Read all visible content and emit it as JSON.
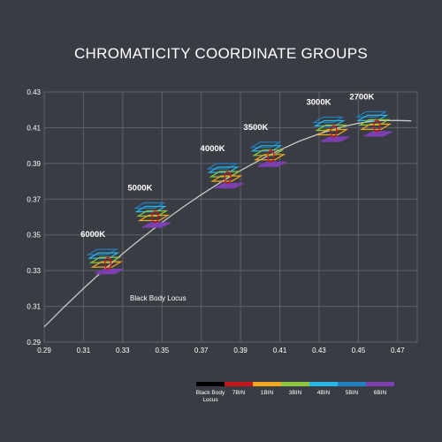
{
  "chart_data": {
    "type": "scatter",
    "title": "CHROMATICITY COORDINATE GROUPS",
    "xlabel": "",
    "ylabel": "",
    "xlim": [
      0.29,
      0.48
    ],
    "ylim": [
      0.29,
      0.43
    ],
    "xticks": [
      "0.29",
      "0.31",
      "0.33",
      "0.35",
      "0.37",
      "0.39",
      "0.41",
      "0.43",
      "0.45",
      "0.47"
    ],
    "yticks": [
      "0.29",
      "0.31",
      "0.33",
      "0.35",
      "0.37",
      "0.39",
      "0.41",
      "0.43"
    ],
    "grid": true,
    "locus_label": "Black Body Locus",
    "locus": [
      {
        "x": 0.29,
        "y": 0.2985
      },
      {
        "x": 0.3,
        "y": 0.3095
      },
      {
        "x": 0.31,
        "y": 0.32
      },
      {
        "x": 0.32,
        "y": 0.33
      },
      {
        "x": 0.33,
        "y": 0.3395
      },
      {
        "x": 0.34,
        "y": 0.3485
      },
      {
        "x": 0.35,
        "y": 0.357
      },
      {
        "x": 0.36,
        "y": 0.365
      },
      {
        "x": 0.37,
        "y": 0.3725
      },
      {
        "x": 0.38,
        "y": 0.3795
      },
      {
        "x": 0.39,
        "y": 0.386
      },
      {
        "x": 0.4,
        "y": 0.392
      },
      {
        "x": 0.41,
        "y": 0.3975
      },
      {
        "x": 0.42,
        "y": 0.4025
      },
      {
        "x": 0.43,
        "y": 0.4065
      },
      {
        "x": 0.44,
        "y": 0.41
      },
      {
        "x": 0.45,
        "y": 0.4125
      },
      {
        "x": 0.46,
        "y": 0.414
      },
      {
        "x": 0.47,
        "y": 0.414
      },
      {
        "x": 0.477,
        "y": 0.4138
      }
    ],
    "groups": [
      {
        "label": "6000K",
        "x": 0.322,
        "y": 0.333
      },
      {
        "label": "5000K",
        "x": 0.346,
        "y": 0.359
      },
      {
        "label": "4000K",
        "x": 0.383,
        "y": 0.381
      },
      {
        "label": "3500K",
        "x": 0.405,
        "y": 0.393
      },
      {
        "label": "3000K",
        "x": 0.437,
        "y": 0.407
      },
      {
        "label": "2700K",
        "x": 0.459,
        "y": 0.41
      }
    ],
    "legend": [
      {
        "label": "Black Body Locus",
        "color": "#000000"
      },
      {
        "label": "7BIN",
        "color": "#c4161c"
      },
      {
        "label": "1BIN",
        "color": "#f0a81c"
      },
      {
        "label": "3BIN",
        "color": "#8cc63f"
      },
      {
        "label": "4BIN",
        "color": "#29b6e8"
      },
      {
        "label": "5BIN",
        "color": "#1f7fc1"
      },
      {
        "label": "6BIN",
        "color": "#7b3fb0"
      }
    ],
    "bin_colors": {
      "7BIN": "#c4161c",
      "1BIN": "#f0a81c",
      "3BIN": "#8cc63f",
      "4BIN": "#29b6e8",
      "5BIN": "#1f7fc1",
      "6BIN": "#7b3fb0"
    }
  }
}
